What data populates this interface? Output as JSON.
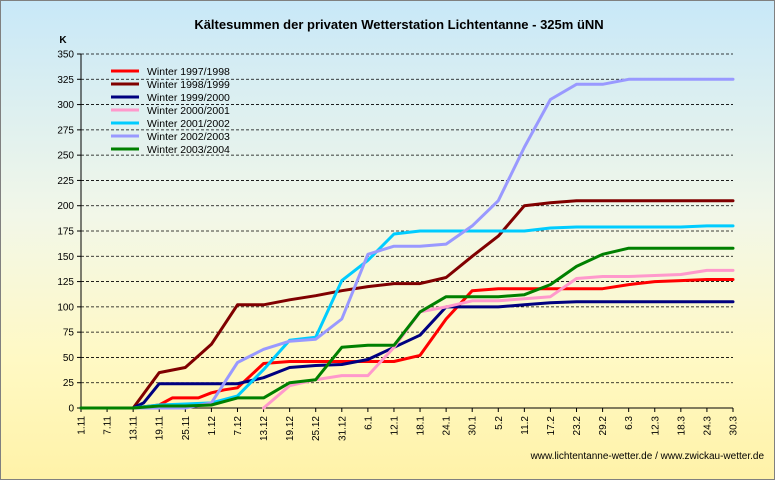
{
  "chart_data": {
    "type": "line",
    "title": "Kältesummen der privaten Wetterstation Lichtentanne - 325m üNN",
    "ylabel": "K",
    "xlabel": "",
    "ylim": [
      0,
      350
    ],
    "yticks": [
      0,
      25,
      50,
      75,
      100,
      125,
      150,
      175,
      200,
      225,
      250,
      275,
      300,
      325,
      350
    ],
    "categories": [
      "1.11",
      "7.11",
      "13.11",
      "19.11",
      "25.11",
      "1.12",
      "7.12",
      "13.12",
      "19.12",
      "25.12",
      "31.12",
      "6.1",
      "12.1",
      "18.1",
      "24.1",
      "30.1",
      "5.2",
      "11.2",
      "17.2",
      "23.2",
      "29.2",
      "6.3",
      "12.3",
      "18.3",
      "24.3",
      "30.3"
    ],
    "grid": "horizontal dashed",
    "legend_position": "top-left",
    "series": [
      {
        "name": "Winter 1997/1998",
        "color": "#ff0000",
        "points": [
          [
            0,
            0
          ],
          [
            2,
            0
          ],
          [
            3,
            3
          ],
          [
            3.5,
            10
          ],
          [
            4.5,
            10
          ],
          [
            5,
            15
          ],
          [
            5.5,
            18
          ],
          [
            6,
            20
          ],
          [
            7,
            44
          ],
          [
            8,
            46
          ],
          [
            10,
            46
          ],
          [
            11,
            46
          ],
          [
            12,
            46
          ],
          [
            13,
            52
          ],
          [
            14,
            88
          ],
          [
            15,
            116
          ],
          [
            16,
            118
          ],
          [
            17,
            118
          ],
          [
            18,
            118
          ],
          [
            19,
            118
          ],
          [
            20,
            118
          ],
          [
            21,
            122
          ],
          [
            22,
            125
          ],
          [
            23,
            126
          ],
          [
            24,
            127
          ],
          [
            25,
            127
          ]
        ]
      },
      {
        "name": "Winter 1998/1999",
        "color": "#800000",
        "points": [
          [
            0,
            0
          ],
          [
            2,
            0
          ],
          [
            3,
            35
          ],
          [
            4,
            40
          ],
          [
            5,
            63
          ],
          [
            6,
            102
          ],
          [
            7,
            102
          ],
          [
            8,
            107
          ],
          [
            9,
            111
          ],
          [
            10,
            116
          ],
          [
            11,
            120
          ],
          [
            12,
            123
          ],
          [
            13,
            123
          ],
          [
            14,
            129
          ],
          [
            15,
            150
          ],
          [
            16,
            170
          ],
          [
            17,
            200
          ],
          [
            18,
            203
          ],
          [
            19,
            205
          ],
          [
            20,
            205
          ],
          [
            21,
            205
          ],
          [
            22,
            205
          ],
          [
            23,
            205
          ],
          [
            24,
            205
          ],
          [
            25,
            205
          ]
        ]
      },
      {
        "name": "Winter 1999/2000",
        "color": "#000080",
        "points": [
          [
            0,
            0
          ],
          [
            2,
            0
          ],
          [
            2.4,
            5
          ],
          [
            3,
            24
          ],
          [
            4,
            24
          ],
          [
            5,
            24
          ],
          [
            6,
            24
          ],
          [
            7,
            30
          ],
          [
            8,
            40
          ],
          [
            9,
            42
          ],
          [
            10,
            43
          ],
          [
            11,
            48
          ],
          [
            12,
            60
          ],
          [
            13,
            72
          ],
          [
            14,
            100
          ],
          [
            15,
            100
          ],
          [
            16,
            100
          ],
          [
            17,
            102
          ],
          [
            18,
            104
          ],
          [
            19,
            105
          ],
          [
            20,
            105
          ],
          [
            21,
            105
          ],
          [
            22,
            105
          ],
          [
            23,
            105
          ],
          [
            24,
            105
          ],
          [
            25,
            105
          ]
        ]
      },
      {
        "name": "Winter 2000/2001",
        "color": "#ff99cc",
        "points": [
          [
            7,
            0
          ],
          [
            8,
            22
          ],
          [
            9,
            28
          ],
          [
            10,
            32
          ],
          [
            11,
            32
          ],
          [
            12,
            60
          ],
          [
            13,
            95
          ],
          [
            14,
            100
          ],
          [
            15,
            106
          ],
          [
            16,
            106
          ],
          [
            17,
            108
          ],
          [
            18,
            110
          ],
          [
            19,
            128
          ],
          [
            20,
            130
          ],
          [
            21,
            130
          ],
          [
            22,
            131
          ],
          [
            23,
            132
          ],
          [
            24,
            136
          ],
          [
            25,
            136
          ]
        ]
      },
      {
        "name": "Winter 2001/2002",
        "color": "#00ccff",
        "points": [
          [
            0,
            0
          ],
          [
            2,
            0
          ],
          [
            3,
            3
          ],
          [
            4,
            4
          ],
          [
            5,
            5
          ],
          [
            6,
            12
          ],
          [
            7,
            38
          ],
          [
            8,
            67
          ],
          [
            9,
            70
          ],
          [
            10,
            126
          ],
          [
            11,
            146
          ],
          [
            12,
            172
          ],
          [
            13,
            175
          ],
          [
            14,
            175
          ],
          [
            15,
            175
          ],
          [
            16,
            175
          ],
          [
            17,
            175
          ],
          [
            18,
            178
          ],
          [
            19,
            179
          ],
          [
            20,
            179
          ],
          [
            21,
            179
          ],
          [
            22,
            179
          ],
          [
            23,
            179
          ],
          [
            24,
            180
          ],
          [
            25,
            180
          ]
        ]
      },
      {
        "name": "Winter 2002/2003",
        "color": "#9999ff",
        "points": [
          [
            0,
            0
          ],
          [
            2,
            0
          ],
          [
            3,
            0
          ],
          [
            4,
            0
          ],
          [
            5,
            5
          ],
          [
            6,
            45
          ],
          [
            7,
            58
          ],
          [
            8,
            66
          ],
          [
            9,
            68
          ],
          [
            10,
            88
          ],
          [
            11,
            152
          ],
          [
            12,
            160
          ],
          [
            13,
            160
          ],
          [
            14,
            162
          ],
          [
            15,
            180
          ],
          [
            16,
            205
          ],
          [
            17,
            258
          ],
          [
            18,
            305
          ],
          [
            19,
            320
          ],
          [
            20,
            320
          ],
          [
            21,
            325
          ],
          [
            22,
            325
          ],
          [
            23,
            325
          ],
          [
            24,
            325
          ],
          [
            25,
            325
          ]
        ]
      },
      {
        "name": "Winter 2003/2004",
        "color": "#008000",
        "points": [
          [
            0,
            0
          ],
          [
            2,
            0
          ],
          [
            3,
            2
          ],
          [
            4,
            2
          ],
          [
            5,
            3
          ],
          [
            6,
            10
          ],
          [
            7,
            10
          ],
          [
            8,
            25
          ],
          [
            9,
            28
          ],
          [
            10,
            60
          ],
          [
            11,
            62
          ],
          [
            12,
            62
          ],
          [
            13,
            95
          ],
          [
            14,
            110
          ],
          [
            15,
            110
          ],
          [
            16,
            110
          ],
          [
            17,
            112
          ],
          [
            18,
            122
          ],
          [
            19,
            140
          ],
          [
            20,
            152
          ],
          [
            21,
            158
          ],
          [
            22,
            158
          ],
          [
            23,
            158
          ],
          [
            24,
            158
          ],
          [
            25,
            158
          ]
        ]
      }
    ],
    "credit": "www.lichtentanne-wetter.de / www.zwickau-wetter.de"
  }
}
